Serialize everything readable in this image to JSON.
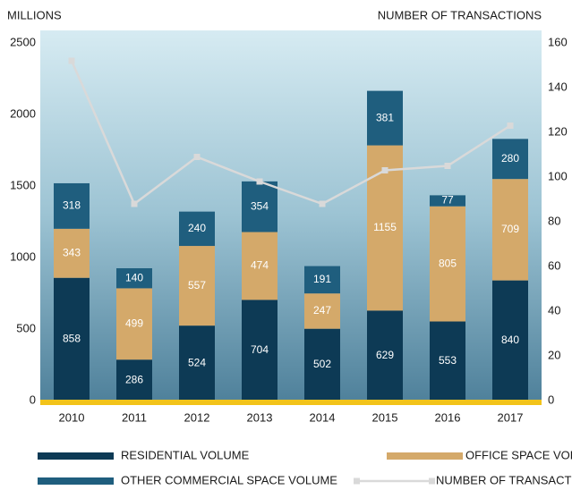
{
  "chart_data": {
    "type": "bar",
    "stacked": true,
    "y_label": "MILLIONS",
    "y2_label": "NUMBER OF TRANSACTIONS",
    "categories": [
      "2010",
      "2011",
      "2012",
      "2013",
      "2014",
      "2015",
      "2016",
      "2017"
    ],
    "series": [
      {
        "name": "RESIDENTIAL VOLUME",
        "color": "#0d3a55",
        "values": [
          858,
          286,
          524,
          704,
          502,
          629,
          553,
          840
        ]
      },
      {
        "name": "OFFICE SPACE VOLUME",
        "color": "#d4a96a",
        "values": [
          343,
          499,
          557,
          474,
          247,
          1155,
          805,
          709
        ]
      },
      {
        "name": "OTHER COMMERCIAL SPACE VOLUME",
        "color": "#1f5e7e",
        "values": [
          318,
          140,
          240,
          354,
          191,
          381,
          77,
          280
        ]
      },
      {
        "name": "NUMBER OF TRANSACTIONS",
        "color": "#d9d9d9",
        "axis": "y2",
        "values": [
          152,
          88,
          109,
          98,
          88,
          103,
          105,
          123
        ]
      }
    ],
    "ylim": [
      0,
      2500
    ],
    "yticks": [
      0,
      500,
      1000,
      1500,
      2000,
      2500
    ],
    "y2lim": [
      0,
      160
    ],
    "y2ticks": [
      0,
      20,
      40,
      60,
      80,
      100,
      120,
      140,
      160
    ]
  }
}
